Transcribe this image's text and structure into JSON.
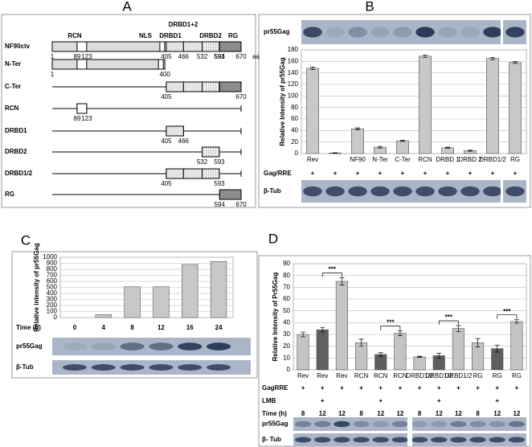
{
  "panel_a": {
    "label": "A",
    "header": "DRBD1+2",
    "domains": [
      "RCN",
      "NLS",
      "DRBD1",
      "DRBD2",
      "RG"
    ],
    "unit": "aa",
    "constructs": [
      {
        "name": "NF90ctv",
        "positions": [
          1,
          89,
          123,
          405,
          466,
          532,
          593,
          594,
          670
        ]
      },
      {
        "name": "N-Ter",
        "positions": [
          1,
          400
        ]
      },
      {
        "name": "C-Ter",
        "positions": [
          405,
          670
        ]
      },
      {
        "name": "RCN",
        "positions": [
          89,
          123
        ]
      },
      {
        "name": "DRBD1",
        "positions": [
          405,
          466
        ]
      },
      {
        "name": "DRBD2",
        "positions": [
          532,
          593
        ]
      },
      {
        "name": "DRBD1/2",
        "positions": [
          405,
          593
        ]
      },
      {
        "name": "RG",
        "positions": [
          594,
          670
        ]
      }
    ]
  },
  "chart_data": [
    {
      "type": "bar",
      "panel_label": "B",
      "ylabel": "Relative Intensity of pr55Gag",
      "categories": [
        "Rev",
        null,
        "NF90",
        "N-Ter",
        "C-Ter",
        "RCN",
        "DRBD 1",
        "DRBD 2",
        "DRBD1/2",
        "RG"
      ],
      "values": [
        148,
        1,
        43,
        11,
        22,
        169,
        10,
        5,
        165,
        158
      ],
      "errors": [
        2,
        0.5,
        1.5,
        1.5,
        1,
        2,
        1,
        1,
        2,
        1.5
      ],
      "color": "#c8c8c8",
      "ylim": [
        0,
        180
      ],
      "yticks": [
        0,
        20,
        40,
        60,
        80,
        100,
        120,
        140,
        160,
        180
      ],
      "grid": true,
      "rows": [
        {
          "label": "Gag/RRE",
          "values": [
            "+",
            "+",
            "+",
            "+",
            "+",
            "+",
            "+",
            "+",
            "+",
            "+"
          ]
        }
      ],
      "blots": [
        "pr55Gag",
        "β-Tub"
      ]
    },
    {
      "type": "bar",
      "panel_label": "C",
      "ylabel": "Relative intensity of pr55Gag",
      "xlabel": "Time (h)",
      "categories": [
        "0",
        "4",
        "8",
        "12",
        "16",
        "24"
      ],
      "values": [
        0,
        50,
        510,
        510,
        880,
        930
      ],
      "color": "#c8c8c8",
      "ylim": [
        0,
        1000
      ],
      "yticks": [
        0,
        100,
        200,
        300,
        400,
        500,
        600,
        700,
        800,
        900,
        1000
      ],
      "grid": true,
      "blots": [
        "pr55Gag",
        "β-Tub"
      ]
    },
    {
      "type": "bar",
      "panel_label": "D",
      "ylabel": "Relative Intensity of Pr55Gag",
      "categories": [
        "Rev",
        "Rev",
        "Rev",
        "RCN",
        "RCN",
        "RCN",
        "DRBD1/2",
        "DRBD1/2",
        "DRBD1/2",
        "RG",
        "RG",
        "RG"
      ],
      "values": [
        30,
        34,
        75,
        23,
        13,
        31,
        11,
        12,
        35,
        23,
        18,
        41
      ],
      "errors": [
        2,
        2,
        3,
        3,
        1.5,
        2,
        0.5,
        2,
        2.5,
        3.5,
        3,
        1.5
      ],
      "colors": [
        "#c4c4c4",
        "#5e5e5e",
        "#c4c4c4",
        "#c4c4c4",
        "#5e5e5e",
        "#c4c4c4",
        "#c4c4c4",
        "#5e5e5e",
        "#c4c4c4",
        "#c4c4c4",
        "#5e5e5e",
        "#c4c4c4"
      ],
      "ylim": [
        0,
        90
      ],
      "yticks": [
        0,
        10,
        20,
        30,
        40,
        50,
        60,
        70,
        80,
        90
      ],
      "grid": true,
      "significance": [
        {
          "from": 1,
          "to": 2,
          "label": "***"
        },
        {
          "from": 4,
          "to": 5,
          "label": "***"
        },
        {
          "from": 7,
          "to": 8,
          "label": "***"
        },
        {
          "from": 10,
          "to": 11,
          "label": "***"
        }
      ],
      "rows": [
        {
          "label": "GagRRE",
          "values": [
            "+",
            "+",
            "+",
            "+",
            "+",
            "+",
            "+",
            "+",
            "+",
            "+",
            "+",
            "+"
          ]
        },
        {
          "label": "LMB",
          "values": [
            null,
            "+",
            null,
            null,
            "+",
            null,
            null,
            "+",
            null,
            null,
            "+",
            null
          ]
        },
        {
          "label": "Time (h)",
          "values": [
            8,
            12,
            12,
            8,
            12,
            12,
            8,
            12,
            12,
            8,
            12,
            12
          ]
        }
      ],
      "blots": [
        "pr55Gag",
        "β- Tub"
      ]
    }
  ]
}
